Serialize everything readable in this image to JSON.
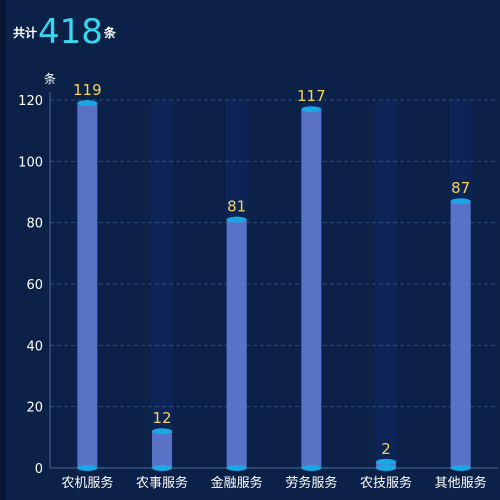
{
  "summary": {
    "prefix": "共计",
    "total": "418",
    "suffix": "条"
  },
  "chart_data": {
    "type": "bar",
    "ylabel": "条",
    "ylim": [
      0,
      120
    ],
    "yticks": [
      0,
      20,
      40,
      60,
      80,
      100,
      120
    ],
    "categories": [
      "农机服务",
      "农事服务",
      "金融服务",
      "劳务服务",
      "农技服务",
      "其他服务"
    ],
    "values": [
      119,
      12,
      81,
      117,
      2,
      87
    ],
    "grid": true,
    "colors": {
      "bar": "#5a72c6",
      "cap": "#1aa7e6",
      "track": "#0d2456",
      "grid": "#2e4f7c",
      "value_label": "#f3d35a"
    }
  }
}
